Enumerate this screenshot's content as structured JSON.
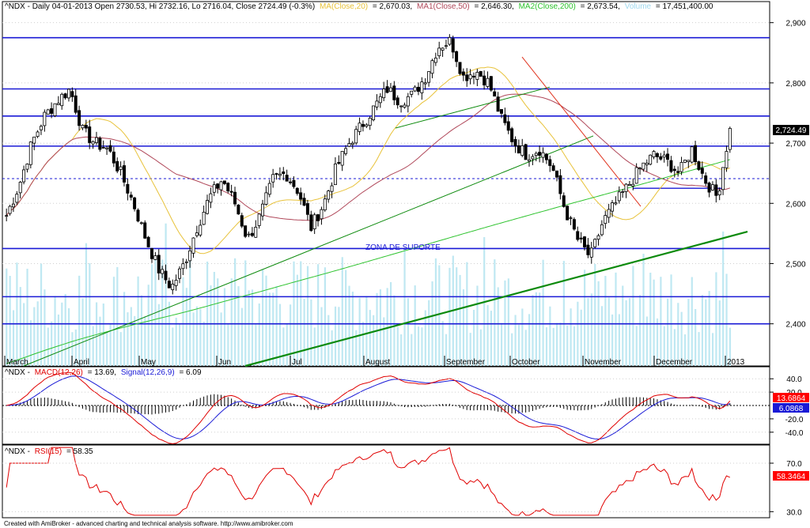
{
  "footer": "Created with AmiBroker - advanced charting and technical analysis software. http://www.amibroker.com",
  "price_panel": {
    "header": {
      "symbol": "^NDX - Daily 04-01-2013 Open 2730.53, Hi 2732.16, Lo 2716.04, Close 2724.49 (-0.3%)",
      "ma20_name": "MA(Close,20)",
      "ma20_value": "= 2,670.03,",
      "ma50_name": "MA1(Close,50)",
      "ma50_value": "= 2,646.30,",
      "ma200_name": "MA2(Close,200)",
      "ma200_value": "= 2,673.54,",
      "volume_name": "Volume",
      "volume_value": "= 17,451,400.00"
    },
    "last_price_label": "2,724.49",
    "zone_label": "ZONA DE SUPORTE"
  },
  "macd_panel": {
    "header_symbol": "^NDX -",
    "macd_name": "MACD(12,26)",
    "macd_value": "= 13.69,",
    "signal_name": "Signal(12,26,9)",
    "signal_value": "= 6.09",
    "macd_label": "13.6864",
    "signal_label": "6.0868"
  },
  "rsi_panel": {
    "header_symbol": "^NDX -",
    "rsi_name": "RSI(15)",
    "rsi_value": "= 58.35",
    "rsi_label": "58.3464"
  },
  "colors": {
    "candle_up": "#ffffff",
    "candle_down": "#000000",
    "ma20": "#e8c23a",
    "ma50": "#b0485a",
    "ma200": "#2ec32e",
    "volume": "#bfe8f2",
    "hline": "#1a1ad6",
    "trendline": "#0c8a0c",
    "down_trend": "#e0341f",
    "macd": "#e00000",
    "signal": "#1a1ad6",
    "rsi": "#e00000",
    "label_bg_red": "#ff0000",
    "label_bg_blue": "#1a1ad6"
  },
  "chart_data": [
    {
      "type": "candlestick",
      "title": "^NDX - Daily",
      "x_ticks": [
        "March",
        "April",
        "May",
        "Jun",
        "Jul",
        "August",
        "September",
        "October",
        "November",
        "December",
        "2013"
      ],
      "y_ticks": [
        2400,
        2500,
        2600,
        2700,
        2800,
        2900
      ],
      "ylim": [
        2330,
        2935
      ],
      "last_close": 2724.49,
      "closes_sampled_weekly": [
        2580,
        2630,
        2700,
        2745,
        2770,
        2790,
        2720,
        2700,
        2690,
        2650,
        2600,
        2540,
        2490,
        2460,
        2500,
        2560,
        2610,
        2640,
        2600,
        2540,
        2580,
        2640,
        2650,
        2620,
        2560,
        2600,
        2660,
        2700,
        2730,
        2760,
        2790,
        2770,
        2780,
        2810,
        2860,
        2870,
        2810,
        2820,
        2800,
        2740,
        2700,
        2680,
        2690,
        2660,
        2590,
        2540,
        2510,
        2570,
        2600,
        2630,
        2660,
        2680,
        2670,
        2650,
        2690,
        2640,
        2610,
        2724.49
      ],
      "horizontal_levels": [
        2875,
        2790,
        2745,
        2695,
        2641,
        2525,
        2445,
        2400
      ],
      "support_trendline": {
        "from": [
          310,
          2330
        ],
        "to": [
          945,
          2553
        ]
      },
      "uptrend_lines": [
        {
          "from": [
            30,
            2330
          ],
          "to": [
            750,
            2712
          ]
        },
        {
          "from": [
            500,
            2725
          ],
          "to": [
            695,
            2793
          ]
        }
      ],
      "downtrend_line": {
        "from": [
          660,
          2843
        ],
        "to": [
          810,
          2595
        ]
      }
    },
    {
      "type": "line",
      "title": "MACD(12,26) / Signal(12,26,9)",
      "y_ticks": [
        40,
        20,
        -20,
        -40
      ],
      "ylim": [
        -58,
        58
      ],
      "last_macd": 13.6864,
      "last_signal": 6.0868
    },
    {
      "type": "line",
      "title": "RSI(15)",
      "y_ticks": [
        70,
        30
      ],
      "ylim": [
        25,
        85
      ],
      "last_rsi": 58.3464
    }
  ]
}
